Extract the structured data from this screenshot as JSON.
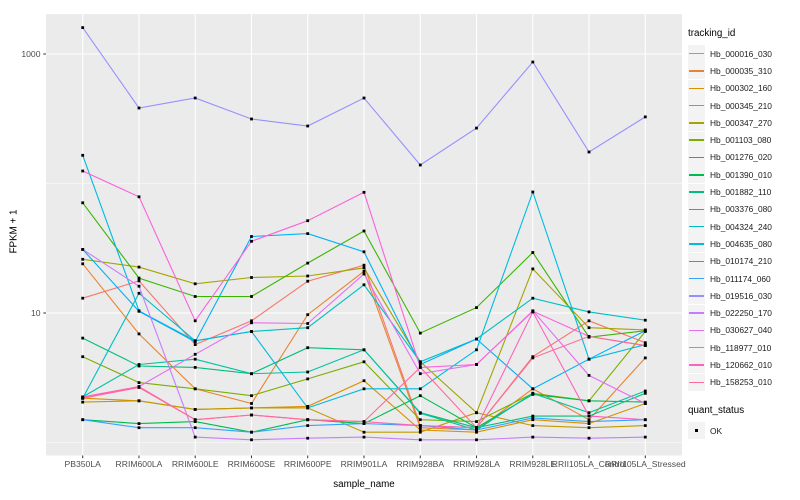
{
  "figure": {
    "bg": "#FFFFFF",
    "panel_bg": "#EBEBEB",
    "grid_color": "#FFFFFF",
    "tick_color": "#333333",
    "tick_label_color": "#4D4D4D",
    "axis_title_color": "#000000",
    "point_color": "#000000"
  },
  "chart_data": {
    "type": "line",
    "title": "",
    "xlabel": "sample_name",
    "ylabel": "FPKM + 1",
    "y_scale": "log10",
    "ylim": [
      0.9,
      2100
    ],
    "grid": true,
    "y_tick_values": [
      1000,
      10
    ],
    "y_tick_labels": [
      "1000",
      "10"
    ],
    "y_minor_values": [
      100,
      1
    ],
    "categories": [
      "PB350LA",
      "RRIM600LA",
      "RRIM600LE",
      "RRIM600SE",
      "RRIM600PE",
      "RRIM901LA",
      "RRIM928BA",
      "RRIM928LA",
      "RRIM928LE",
      "RRII105LA_Control",
      "RRII105LA_Stressed"
    ],
    "legend": {
      "title": "tracking_id",
      "position": "right"
    },
    "quant_legend": {
      "title": "quant_status",
      "items": [
        "OK"
      ]
    },
    "series": [
      {
        "name": "Hb_000016_030",
        "color": "#F8766D",
        "values": [
          13.0,
          17.7,
          5.7,
          8.7,
          17.6,
          23.4,
          1.35,
          1.3,
          4.6,
          8.7,
          5.9
        ]
      },
      {
        "name": "Hb_000035_310",
        "color": "#EA8331",
        "values": [
          24.0,
          6.9,
          2.6,
          2.0,
          9.7,
          21.0,
          1.3,
          1.25,
          2.6,
          1.5,
          4.5
        ]
      },
      {
        "name": "Hb_000302_160",
        "color": "#D89000",
        "values": [
          2.2,
          2.1,
          1.8,
          1.85,
          1.9,
          3.0,
          1.25,
          1.2,
          1.5,
          1.4,
          2.0
        ]
      },
      {
        "name": "Hb_000345_210",
        "color": "#C09B00",
        "values": [
          2.05,
          2.1,
          1.8,
          1.85,
          1.85,
          1.2,
          1.2,
          1.7,
          1.35,
          1.3,
          1.35
        ]
      },
      {
        "name": "Hb_000347_270",
        "color": "#A3A500",
        "values": [
          26.0,
          22.6,
          16.8,
          18.8,
          19.3,
          22.3,
          4.2,
          1.7,
          21.9,
          7.7,
          7.4
        ]
      },
      {
        "name": "Hb_001103_080",
        "color": "#7CAE00",
        "values": [
          4.6,
          2.9,
          2.6,
          2.3,
          3.1,
          4.2,
          1.5,
          1.45,
          2.4,
          2.1,
          7.2
        ]
      },
      {
        "name": "Hb_001276_020",
        "color": "#39B600",
        "values": [
          71.0,
          18.6,
          13.4,
          13.4,
          24.3,
          43.0,
          7.0,
          11.0,
          29.3,
          6.5,
          7.3
        ]
      },
      {
        "name": "Hb_001390_010",
        "color": "#00BB4E",
        "values": [
          1.5,
          1.4,
          1.45,
          1.2,
          1.5,
          1.4,
          2.3,
          1.3,
          2.35,
          2.1,
          2.05
        ]
      },
      {
        "name": "Hb_001882_110",
        "color": "#00BF7D",
        "values": [
          6.4,
          3.9,
          3.8,
          3.4,
          5.4,
          5.2,
          1.7,
          1.3,
          1.6,
          1.6,
          2.4
        ]
      },
      {
        "name": "Hb_003376_080",
        "color": "#00C1A3",
        "values": [
          2.25,
          4.0,
          4.4,
          3.4,
          3.5,
          5.2,
          1.68,
          1.25,
          2.4,
          1.7,
          2.5
        ]
      },
      {
        "name": "Hb_004324_240",
        "color": "#00BFC4",
        "values": [
          2.2,
          14.2,
          6.1,
          7.2,
          7.7,
          16.5,
          4.2,
          6.3,
          13.0,
          10.2,
          8.8
        ]
      },
      {
        "name": "Hb_004635_080",
        "color": "#00BAE0",
        "values": [
          165,
          10.4,
          6.1,
          7.2,
          1.85,
          2.6,
          2.6,
          5.2,
          86.0,
          4.4,
          5.7
        ]
      },
      {
        "name": "Hb_010174_210",
        "color": "#00B0F6",
        "values": [
          31.0,
          10.3,
          6.0,
          39.0,
          41.0,
          29.7,
          4.0,
          6.3,
          2.6,
          4.4,
          7.3
        ]
      },
      {
        "name": "Hb_011174_060",
        "color": "#35A2FF",
        "values": [
          1.5,
          1.3,
          1.3,
          1.2,
          1.35,
          1.4,
          1.35,
          1.25,
          1.55,
          1.45,
          1.5
        ]
      },
      {
        "name": "Hb_019516_030",
        "color": "#9590FF",
        "values": [
          1600,
          383,
          457,
          315,
          278,
          457,
          139,
          268,
          867,
          175,
          327
        ]
      },
      {
        "name": "Hb_022250_170",
        "color": "#C77CFF",
        "values": [
          31.0,
          16.1,
          1.1,
          1.05,
          1.08,
          1.1,
          1.05,
          1.05,
          1.1,
          1.08,
          1.1
        ]
      },
      {
        "name": "Hb_030627_040",
        "color": "#E76BF3",
        "values": [
          2.2,
          2.7,
          4.8,
          8.4,
          8.3,
          20.0,
          3.4,
          4.0,
          10.4,
          3.3,
          2.0
        ]
      },
      {
        "name": "Hb_118977_010",
        "color": "#FA62DB",
        "values": [
          125,
          79.0,
          8.7,
          35.8,
          51.6,
          85.5,
          3.8,
          4.0,
          10.3,
          6.6,
          5.6
        ]
      },
      {
        "name": "Hb_120662_010",
        "color": "#FF62BC",
        "values": [
          2.25,
          2.7,
          1.5,
          1.63,
          1.5,
          1.45,
          1.35,
          1.3,
          10.2,
          1.6,
          1.5
        ]
      },
      {
        "name": "Hb_158253_010",
        "color": "#FF6A98",
        "values": [
          2.2,
          2.66,
          1.5,
          1.63,
          1.5,
          1.45,
          3.8,
          1.3,
          4.5,
          6.6,
          5.6
        ]
      }
    ]
  }
}
